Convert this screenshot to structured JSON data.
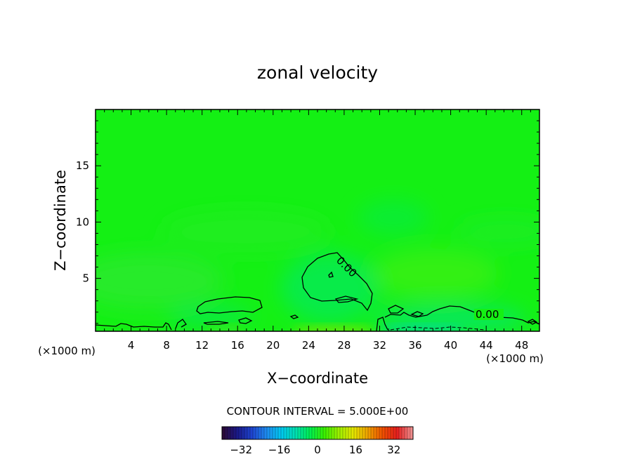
{
  "chart_data": {
    "type": "heatmap",
    "title": "zonal velocity",
    "xlabel": "X−coordinate",
    "ylabel": "Z−coordinate",
    "x_unit_left": "(×1000 m)",
    "x_unit_right": "(×1000 m)",
    "xlim": [
      0,
      50
    ],
    "ylim": [
      0.3,
      20
    ],
    "x_ticks": [
      4,
      8,
      12,
      16,
      20,
      24,
      28,
      32,
      36,
      40,
      44,
      48
    ],
    "y_ticks": [
      5,
      10,
      15
    ],
    "contour_labels": [
      {
        "text": "0.00",
        "x": 27.9,
        "z": 5.8
      },
      {
        "text": "0.00",
        "x": 42.9,
        "z": 1.5
      }
    ],
    "contour_interval_text": "CONTOUR INTERVAL = 5.000E+00",
    "colorbar": {
      "range": [
        -40,
        40
      ],
      "ticks": [
        -32,
        -16,
        0,
        16,
        32
      ],
      "colors": [
        "#2a0a3a",
        "#1a1a8c",
        "#1e46d2",
        "#1e8cf0",
        "#00c8f0",
        "#00e0b0",
        "#00f050",
        "#3cf000",
        "#a0f000",
        "#e6e600",
        "#f0a000",
        "#f05000",
        "#e61e1e",
        "#f08c8c"
      ]
    },
    "colors": {
      "field_background": "#14f014",
      "contour_line": "#000000"
    },
    "grid": false
  }
}
